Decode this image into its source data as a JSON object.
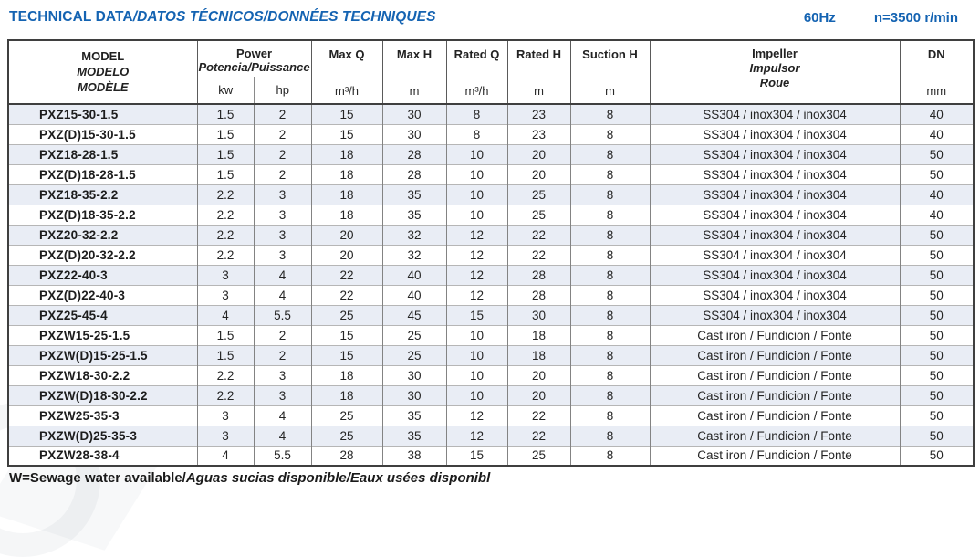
{
  "page": {
    "title_main": "TECHNICAL DATA",
    "title_rest": "/DATOS TÉCNICOS/DONNÉES TECHNIQUES",
    "frequency": "60Hz",
    "speed": "n=3500 r/min",
    "footnote_main": "W=Sewage water available/",
    "footnote_italic": "Aguas sucias disponible/Eaux usées disponibl"
  },
  "colors": {
    "title_blue": "#1463b2",
    "row_stripe": "#e9edf5",
    "outer_border": "#3f3f3f",
    "inner_vertical_border": "#838383",
    "inner_horizontal_border": "#b6b6b6",
    "body_text": "#242424"
  },
  "table": {
    "header": {
      "model": {
        "l1": "MODEL",
        "l2": "MODELO",
        "l3": "MODÈLE"
      },
      "power": {
        "l1": "Power",
        "l2": "Potencia/Puissance",
        "unit_kw": "kw",
        "unit_hp": "hp"
      },
      "max_q": {
        "label": "Max Q",
        "unit": "m³/h"
      },
      "max_h": {
        "label": "Max H",
        "unit": "m"
      },
      "rated_q": {
        "label": "Rated Q",
        "unit": "m³/h"
      },
      "rated_h": {
        "label": "Rated H",
        "unit": "m"
      },
      "suction_h": {
        "label": "Suction H",
        "unit": "m"
      },
      "impeller": {
        "l1": "Impeller",
        "l2": "Impulsor",
        "l3": "Roue"
      },
      "dn": {
        "label": "DN",
        "unit": "mm"
      }
    },
    "column_keys": [
      "model",
      "kw",
      "hp",
      "max_q",
      "max_h",
      "rated_q",
      "rated_h",
      "suction_h",
      "impeller",
      "dn"
    ],
    "rows": [
      [
        "PXZ15-30-1.5",
        "1.5",
        "2",
        "15",
        "30",
        "8",
        "23",
        "8",
        "SS304 / inox304 / inox304",
        "40"
      ],
      [
        "PXZ(D)15-30-1.5",
        "1.5",
        "2",
        "15",
        "30",
        "8",
        "23",
        "8",
        "SS304 / inox304 / inox304",
        "40"
      ],
      [
        "PXZ18-28-1.5",
        "1.5",
        "2",
        "18",
        "28",
        "10",
        "20",
        "8",
        "SS304 / inox304 / inox304",
        "50"
      ],
      [
        "PXZ(D)18-28-1.5",
        "1.5",
        "2",
        "18",
        "28",
        "10",
        "20",
        "8",
        "SS304 / inox304 / inox304",
        "50"
      ],
      [
        "PXZ18-35-2.2",
        "2.2",
        "3",
        "18",
        "35",
        "10",
        "25",
        "8",
        "SS304 / inox304 / inox304",
        "40"
      ],
      [
        "PXZ(D)18-35-2.2",
        "2.2",
        "3",
        "18",
        "35",
        "10",
        "25",
        "8",
        "SS304 / inox304 / inox304",
        "40"
      ],
      [
        "PXZ20-32-2.2",
        "2.2",
        "3",
        "20",
        "32",
        "12",
        "22",
        "8",
        "SS304 / inox304 / inox304",
        "50"
      ],
      [
        "PXZ(D)20-32-2.2",
        "2.2",
        "3",
        "20",
        "32",
        "12",
        "22",
        "8",
        "SS304 / inox304 / inox304",
        "50"
      ],
      [
        "PXZ22-40-3",
        "3",
        "4",
        "22",
        "40",
        "12",
        "28",
        "8",
        "SS304 / inox304 / inox304",
        "50"
      ],
      [
        "PXZ(D)22-40-3",
        "3",
        "4",
        "22",
        "40",
        "12",
        "28",
        "8",
        "SS304 / inox304 / inox304",
        "50"
      ],
      [
        "PXZ25-45-4",
        "4",
        "5.5",
        "25",
        "45",
        "15",
        "30",
        "8",
        "SS304 / inox304 / inox304",
        "50"
      ],
      [
        "PXZW15-25-1.5",
        "1.5",
        "2",
        "15",
        "25",
        "10",
        "18",
        "8",
        "Cast iron / Fundicion / Fonte",
        "50"
      ],
      [
        "PXZW(D)15-25-1.5",
        "1.5",
        "2",
        "15",
        "25",
        "10",
        "18",
        "8",
        "Cast iron / Fundicion / Fonte",
        "50"
      ],
      [
        "PXZW18-30-2.2",
        "2.2",
        "3",
        "18",
        "30",
        "10",
        "20",
        "8",
        "Cast iron / Fundicion / Fonte",
        "50"
      ],
      [
        "PXZW(D)18-30-2.2",
        "2.2",
        "3",
        "18",
        "30",
        "10",
        "20",
        "8",
        "Cast iron / Fundicion / Fonte",
        "50"
      ],
      [
        "PXZW25-35-3",
        "3",
        "4",
        "25",
        "35",
        "12",
        "22",
        "8",
        "Cast iron / Fundicion / Fonte",
        "50"
      ],
      [
        "PXZW(D)25-35-3",
        "3",
        "4",
        "25",
        "35",
        "12",
        "22",
        "8",
        "Cast iron / Fundicion / Fonte",
        "50"
      ],
      [
        "PXZW28-38-4",
        "4",
        "5.5",
        "28",
        "38",
        "15",
        "25",
        "8",
        "Cast iron / Fundicion / Fonte",
        "50"
      ]
    ]
  }
}
